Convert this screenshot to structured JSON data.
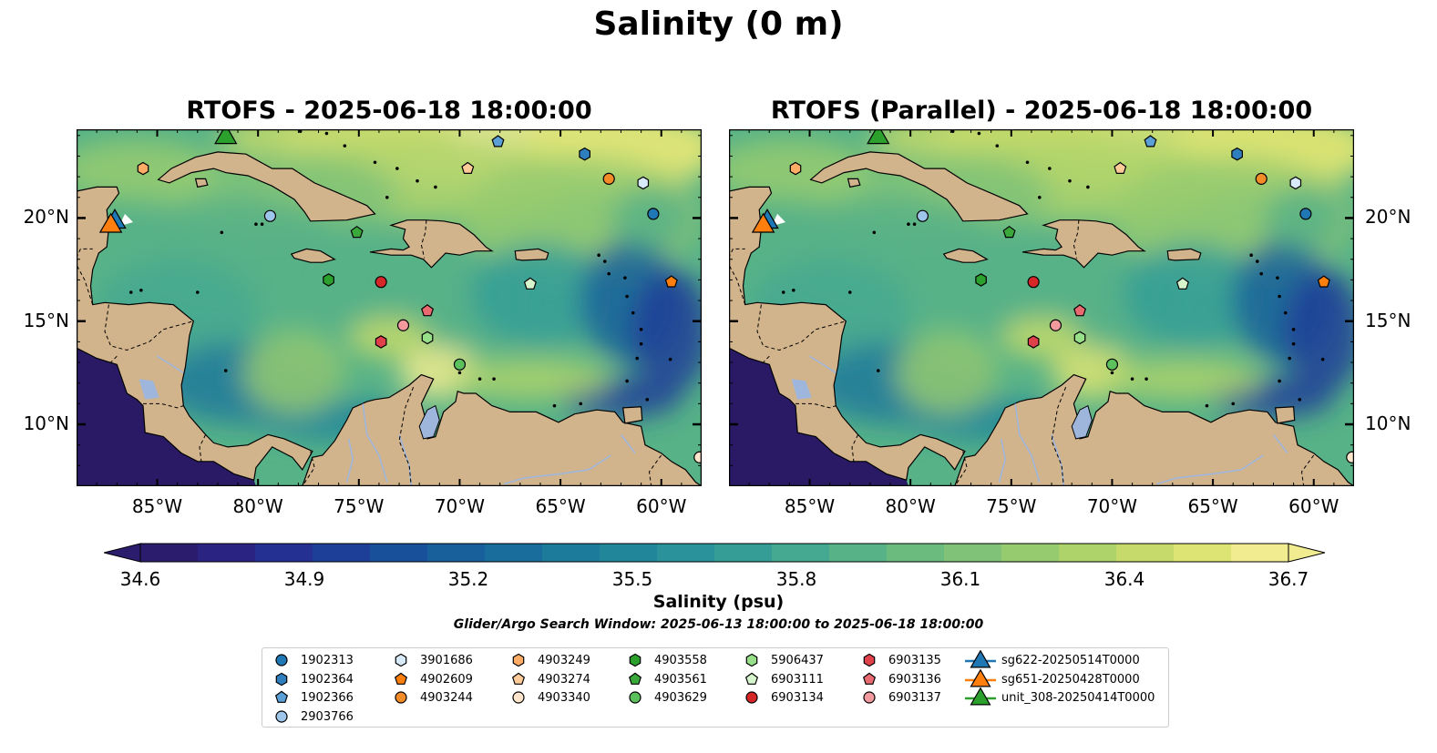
{
  "figure": {
    "title": "Salinity (0 m)",
    "panels": [
      {
        "title": "RTOFS - 2025-06-18 18:00:00"
      },
      {
        "title": "RTOFS (Parallel) - 2025-06-18 18:00:00"
      }
    ]
  },
  "map": {
    "lon_range": [
      -89,
      -58
    ],
    "lat_range": [
      7,
      24.3
    ],
    "lon_ticks": [
      "85°W",
      "80°W",
      "75°W",
      "70°W",
      "65°W",
      "60°W"
    ],
    "lon_tick_values": [
      -85,
      -80,
      -75,
      -70,
      -65,
      -60
    ],
    "lat_ticks": [
      "20°N",
      "15°N",
      "10°N"
    ],
    "lat_tick_values": [
      20,
      15,
      10
    ],
    "land_color": "#d2b48c",
    "pacific_color": "#2a1a66"
  },
  "colorbar": {
    "label": "Salinity (psu)",
    "min": 34.6,
    "max": 36.7,
    "ticks": [
      "34.6",
      "34.9",
      "35.2",
      "35.5",
      "35.8",
      "36.1",
      "36.4",
      "36.7"
    ],
    "colors": [
      "#2b1c6e",
      "#2a2382",
      "#253192",
      "#1e3f98",
      "#19509a",
      "#17609b",
      "#186d9c",
      "#1c7a9b",
      "#22869b",
      "#2a929a",
      "#359d96",
      "#45a890",
      "#57b287",
      "#6bbb7f",
      "#80c378",
      "#96cb70",
      "#aed36b",
      "#c5da6a",
      "#dde473",
      "#f1ec8f"
    ]
  },
  "search_window": "Glider/Argo Search Window: 2025-06-13 18:00:00 to 2025-06-18 18:00:00",
  "legend": [
    {
      "id": "1902313",
      "marker": "circle",
      "color": "#1f77b4"
    },
    {
      "id": "1902364",
      "marker": "hexagon",
      "color": "#2f7fbf"
    },
    {
      "id": "1902366",
      "marker": "pentagon",
      "color": "#5aa0d6"
    },
    {
      "id": "2903766",
      "marker": "circle",
      "color": "#9ec5ea"
    },
    {
      "id": "3901686",
      "marker": "hexagon",
      "color": "#d8ebfa"
    },
    {
      "id": "4902609",
      "marker": "pentagon",
      "color": "#ff7f0e"
    },
    {
      "id": "4903244",
      "marker": "circle",
      "color": "#f28c28"
    },
    {
      "id": "4903249",
      "marker": "hexagon",
      "color": "#ffad66"
    },
    {
      "id": "4903274",
      "marker": "pentagon",
      "color": "#ffcc99"
    },
    {
      "id": "4903340",
      "marker": "circle",
      "color": "#ffe5cc"
    },
    {
      "id": "4903558",
      "marker": "hexagon",
      "color": "#2ca02c"
    },
    {
      "id": "4903561",
      "marker": "pentagon",
      "color": "#3aa83a"
    },
    {
      "id": "4903629",
      "marker": "circle",
      "color": "#5cc05c"
    },
    {
      "id": "5906437",
      "marker": "hexagon",
      "color": "#98df8a"
    },
    {
      "id": "6903111",
      "marker": "pentagon",
      "color": "#d6f5cc"
    },
    {
      "id": "6903134",
      "marker": "circle",
      "color": "#d62728"
    },
    {
      "id": "6903135",
      "marker": "hexagon",
      "color": "#e0404a"
    },
    {
      "id": "6903136",
      "marker": "pentagon",
      "color": "#e86a70"
    },
    {
      "id": "6903137",
      "marker": "circle",
      "color": "#f29a9e"
    },
    {
      "id": "sg622-20250514T0000",
      "marker": "triangle",
      "color": "#1f77b4",
      "line": true
    },
    {
      "id": "sg651-20250428T0000",
      "marker": "triangle",
      "color": "#ff7f0e",
      "line": true
    },
    {
      "id": "unit_308-20250414T0000",
      "marker": "triangle",
      "color": "#2ca02c",
      "line": true
    }
  ],
  "observations": [
    {
      "id": "1902313",
      "lon": -60.4,
      "lat": 20.2
    },
    {
      "id": "1902364",
      "lon": -63.8,
      "lat": 23.1
    },
    {
      "id": "1902366",
      "lon": -68.1,
      "lat": 23.7
    },
    {
      "id": "2903766",
      "lon": -79.4,
      "lat": 20.1
    },
    {
      "id": "3901686",
      "lon": -60.9,
      "lat": 21.7
    },
    {
      "id": "4902609",
      "lon": -59.5,
      "lat": 16.9
    },
    {
      "id": "4903244",
      "lon": -62.6,
      "lat": 21.9
    },
    {
      "id": "4903249",
      "lon": -85.7,
      "lat": 22.4
    },
    {
      "id": "4903274",
      "lon": -69.6,
      "lat": 22.4
    },
    {
      "id": "4903340",
      "lon": -58.1,
      "lat": 8.4
    },
    {
      "id": "4903558",
      "lon": -76.5,
      "lat": 17.0
    },
    {
      "id": "4903561",
      "lon": -75.1,
      "lat": 19.3
    },
    {
      "id": "4903629",
      "lon": -70.0,
      "lat": 12.9
    },
    {
      "id": "5906437",
      "lon": -71.6,
      "lat": 14.2
    },
    {
      "id": "6903111",
      "lon": -66.5,
      "lat": 16.8
    },
    {
      "id": "6903134",
      "lon": -73.9,
      "lat": 16.9
    },
    {
      "id": "6903135",
      "lon": -73.9,
      "lat": 14.0
    },
    {
      "id": "6903136",
      "lon": -71.6,
      "lat": 15.5
    },
    {
      "id": "6903137",
      "lon": -72.8,
      "lat": 14.8
    },
    {
      "id": "sg622-20250514T0000",
      "lon": -87.1,
      "lat": 19.9
    },
    {
      "id": "sg651-20250428T0000",
      "lon": -87.3,
      "lat": 19.7
    },
    {
      "id": "unit_308-20250414T0000",
      "lon": -81.6,
      "lat": 24.0
    }
  ]
}
